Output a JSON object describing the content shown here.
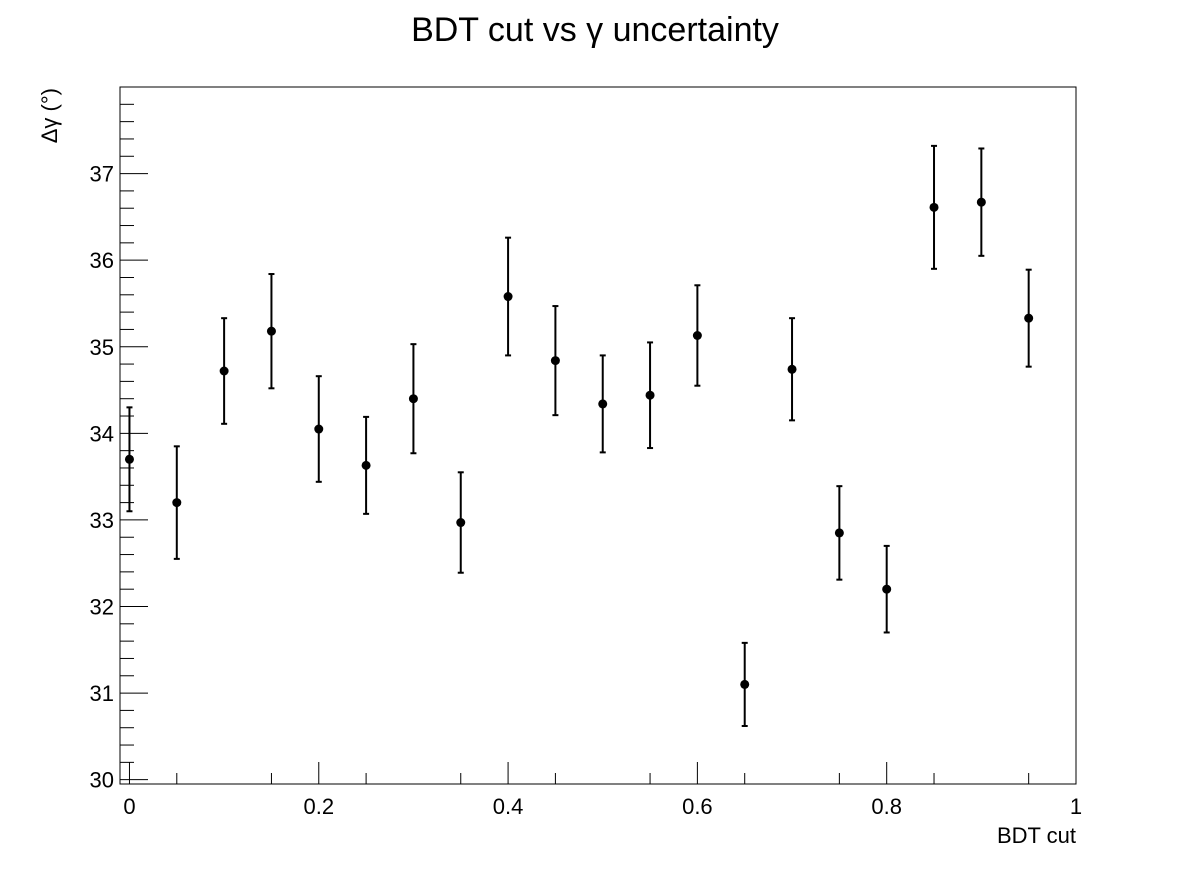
{
  "chart_data": {
    "type": "scatter",
    "title": "BDT cut vs γ uncertainty",
    "xlabel": "BDT cut",
    "ylabel": "Δγ (°)",
    "xlim": [
      -0.01,
      1.0
    ],
    "ylim": [
      29.95,
      38.0
    ],
    "x_ticks": [
      0,
      0.2,
      0.4,
      0.6,
      0.8,
      1
    ],
    "x_tick_labels": [
      "0",
      "0.2",
      "0.4",
      "0.6",
      "0.8",
      "1"
    ],
    "y_ticks": [
      30,
      31,
      32,
      33,
      34,
      35,
      36,
      37
    ],
    "y_tick_labels": [
      "30",
      "31",
      "32",
      "33",
      "34",
      "35",
      "36",
      "37"
    ],
    "grid": false,
    "marker_color": "#000000",
    "points": [
      {
        "x": 0.0,
        "y": 33.7,
        "err": 0.6
      },
      {
        "x": 0.05,
        "y": 33.2,
        "err": 0.65
      },
      {
        "x": 0.1,
        "y": 34.72,
        "err": 0.61
      },
      {
        "x": 0.15,
        "y": 35.18,
        "err": 0.66
      },
      {
        "x": 0.2,
        "y": 34.05,
        "err": 0.61
      },
      {
        "x": 0.25,
        "y": 33.63,
        "err": 0.56
      },
      {
        "x": 0.3,
        "y": 34.4,
        "err": 0.63
      },
      {
        "x": 0.35,
        "y": 32.97,
        "err": 0.58
      },
      {
        "x": 0.4,
        "y": 35.58,
        "err": 0.68
      },
      {
        "x": 0.45,
        "y": 34.84,
        "err": 0.63
      },
      {
        "x": 0.5,
        "y": 34.34,
        "err": 0.56
      },
      {
        "x": 0.55,
        "y": 34.44,
        "err": 0.61
      },
      {
        "x": 0.6,
        "y": 35.13,
        "err": 0.58
      },
      {
        "x": 0.65,
        "y": 31.1,
        "err": 0.48
      },
      {
        "x": 0.7,
        "y": 34.74,
        "err": 0.59
      },
      {
        "x": 0.75,
        "y": 32.85,
        "err": 0.54
      },
      {
        "x": 0.8,
        "y": 32.2,
        "err": 0.5
      },
      {
        "x": 0.85,
        "y": 36.61,
        "err": 0.71
      },
      {
        "x": 0.9,
        "y": 36.67,
        "err": 0.62
      },
      {
        "x": 0.95,
        "y": 35.33,
        "err": 0.56
      }
    ]
  }
}
